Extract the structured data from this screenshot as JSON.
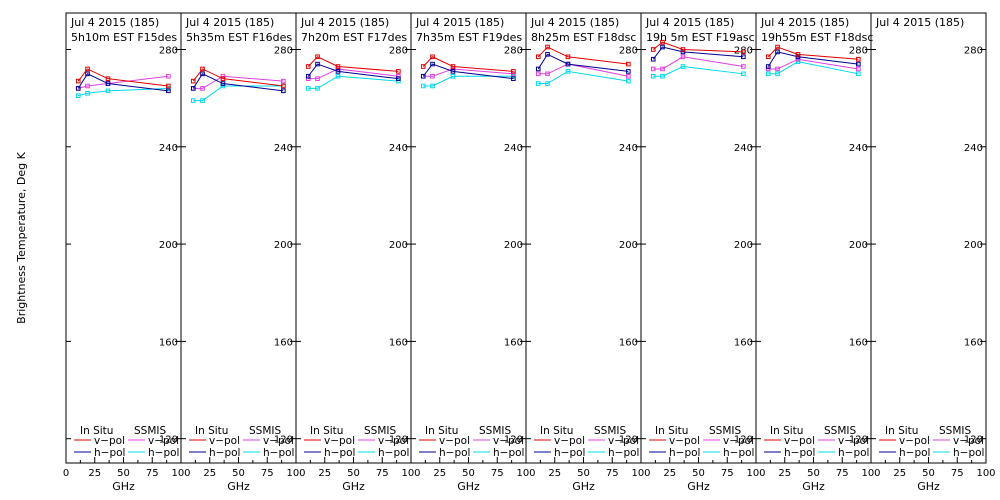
{
  "chart_data": {
    "type": "line",
    "ylabel": "Brightness Temperature, Deg K",
    "xlabel": "GHz",
    "ylim": [
      110,
      295
    ],
    "xlim": [
      0,
      100
    ],
    "yticks": [
      120,
      160,
      200,
      240,
      280
    ],
    "xticks": [
      0,
      25,
      50,
      75,
      100
    ],
    "xtick_labels": [
      "0",
      "25",
      "50",
      "75",
      "100"
    ],
    "legend": {
      "insitu_title": "In Situ",
      "ssmis_title": "SSMIS",
      "vpol": "v−pol",
      "hpol": "h−pol"
    },
    "colors": {
      "insitu_v": "#e00000",
      "insitu_h": "#000090",
      "ssmis_v": "#e040e0",
      "ssmis_h": "#00d8e8"
    },
    "frequencies": [
      10.65,
      18.7,
      36.5,
      89
    ],
    "panels": [
      {
        "date": "Jul 4 2015 (185)",
        "time": "5h10m EST F15des",
        "insitu_v": [
          267,
          272,
          268,
          265
        ],
        "insitu_h": [
          264,
          270,
          266,
          263
        ],
        "ssmis_v": [
          264,
          265,
          266,
          269
        ],
        "ssmis_h": [
          261,
          262,
          263,
          264
        ]
      },
      {
        "date": "Jul 4 2015 (185)",
        "time": "5h35m EST F16des",
        "insitu_v": [
          267,
          272,
          268,
          265
        ],
        "insitu_h": [
          264,
          270,
          266,
          263
        ],
        "ssmis_v": [
          264,
          264,
          269,
          267
        ],
        "ssmis_h": [
          259,
          259,
          265,
          265
        ]
      },
      {
        "date": "Jul 4 2015 (185)",
        "time": "7h20m EST F17des",
        "insitu_v": [
          273,
          277,
          273,
          271
        ],
        "insitu_h": [
          269,
          274,
          271,
          268
        ],
        "ssmis_v": [
          268,
          268,
          272,
          269
        ],
        "ssmis_h": [
          264,
          264,
          269,
          267
        ]
      },
      {
        "date": "Jul 4 2015 (185)",
        "time": "7h35m EST F19des",
        "insitu_v": [
          273,
          277,
          273,
          271
        ],
        "insitu_h": [
          269,
          274,
          271,
          268
        ],
        "ssmis_v": [
          269,
          269,
          272,
          270
        ],
        "ssmis_h": [
          265,
          265,
          269,
          269
        ]
      },
      {
        "date": "Jul 4 2015 (185)",
        "time": "8h25m EST F18dsc",
        "insitu_v": [
          277,
          281,
          277,
          274
        ],
        "insitu_h": [
          272,
          278,
          274,
          271
        ],
        "ssmis_v": [
          270,
          270,
          274,
          269
        ],
        "ssmis_h": [
          266,
          266,
          271,
          267
        ]
      },
      {
        "date": "Jul 4 2015 (185)",
        "time": "19h 5m EST F19asc",
        "insitu_v": [
          280,
          283,
          280,
          279
        ],
        "insitu_h": [
          276,
          281,
          279,
          277
        ],
        "ssmis_v": [
          272,
          272,
          277,
          273
        ],
        "ssmis_h": [
          269,
          269,
          273,
          270
        ]
      },
      {
        "date": "Jul 4 2015 (185)",
        "time": "19h55m EST F18dsc",
        "insitu_v": [
          277,
          281,
          278,
          276
        ],
        "insitu_h": [
          273,
          279,
          277,
          274
        ],
        "ssmis_v": [
          272,
          272,
          276,
          272
        ],
        "ssmis_h": [
          270,
          270,
          275,
          270
        ]
      },
      {
        "date": "Jul 4 2015 (185)",
        "time": "",
        "insitu_v": [],
        "insitu_h": [],
        "ssmis_v": [],
        "ssmis_h": []
      }
    ]
  }
}
